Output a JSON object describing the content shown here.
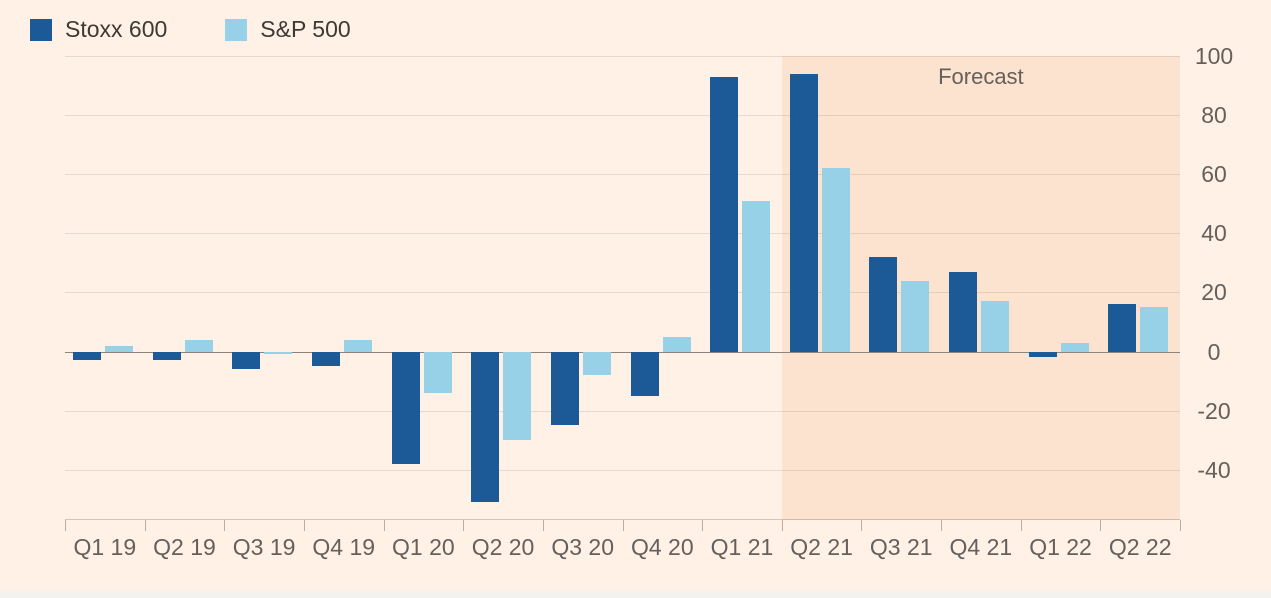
{
  "page": {
    "background": "#fff1e5",
    "bottom_strip_color": "#f3f2ef",
    "axis_text_color": "#66605c"
  },
  "chart_data": {
    "type": "bar",
    "title": "",
    "categories": [
      "Q1 19",
      "Q2 19",
      "Q3 19",
      "Q4 19",
      "Q1 20",
      "Q2 20",
      "Q3 20",
      "Q4 20",
      "Q1 21",
      "Q2 21",
      "Q3 21",
      "Q4 21",
      "Q1 22",
      "Q2 22"
    ],
    "series": [
      {
        "name": "Stoxx 600",
        "color": "#1b5a96",
        "values": [
          -3,
          -3,
          -6,
          -5,
          -38,
          -51,
          -25,
          -15,
          93,
          94,
          32,
          27,
          -2,
          16
        ]
      },
      {
        "name": "S&P 500",
        "color": "#97d1e7",
        "values": [
          2,
          4,
          -1,
          4,
          -14,
          -30,
          -8,
          5,
          51,
          62,
          24,
          17,
          3,
          15
        ]
      }
    ],
    "ylim": [
      -57,
      100
    ],
    "yticks": [
      100,
      80,
      60,
      40,
      20,
      0,
      -20,
      -40
    ],
    "grid": true,
    "legend_position": "top-left",
    "forecast": {
      "label": "Forecast",
      "start_index": 9,
      "band_color": "#fce3cf"
    }
  }
}
